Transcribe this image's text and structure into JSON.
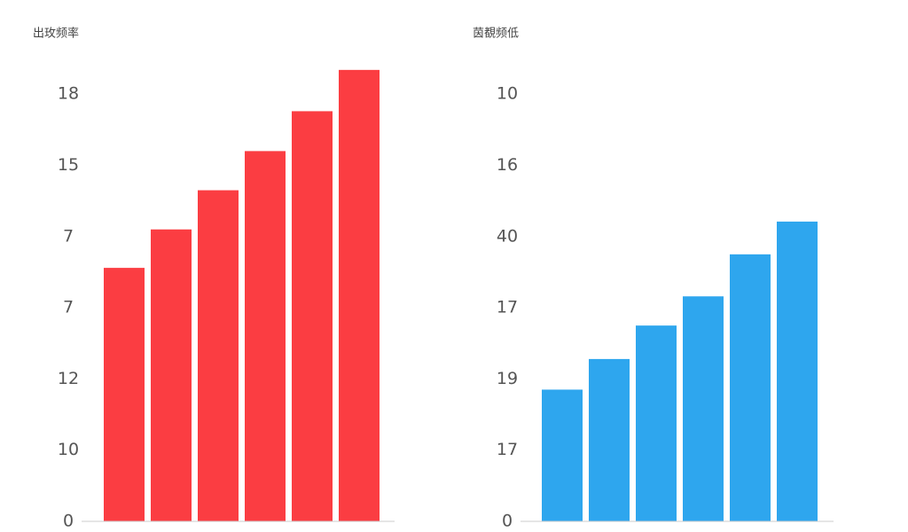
{
  "chart_data": [
    {
      "type": "bar",
      "title": "出玫频率",
      "color": "#fb3d42",
      "values": [
        3.56,
        4.1,
        4.65,
        5.2,
        5.76,
        6.34
      ],
      "ylim": [
        0,
        6.5
      ],
      "yticks": [
        {
          "value": 0,
          "label": "0"
        },
        {
          "value": 1,
          "label": "10"
        },
        {
          "value": 2,
          "label": "12"
        },
        {
          "value": 3,
          "label": "7"
        },
        {
          "value": 4,
          "label": "7"
        },
        {
          "value": 5,
          "label": "15"
        },
        {
          "value": 6,
          "label": "18"
        }
      ]
    },
    {
      "type": "bar",
      "title": "茵覩频低",
      "color": "#2ea6ee",
      "values": [
        1.85,
        2.28,
        2.75,
        3.16,
        3.75,
        4.21
      ],
      "ylim": [
        0,
        6.5
      ],
      "yticks": [
        {
          "value": 0,
          "label": "0"
        },
        {
          "value": 1,
          "label": "17"
        },
        {
          "value": 2,
          "label": "19"
        },
        {
          "value": 3,
          "label": "17"
        },
        {
          "value": 4,
          "label": "40"
        },
        {
          "value": 5,
          "label": "16"
        },
        {
          "value": 6,
          "label": "10"
        }
      ]
    }
  ]
}
